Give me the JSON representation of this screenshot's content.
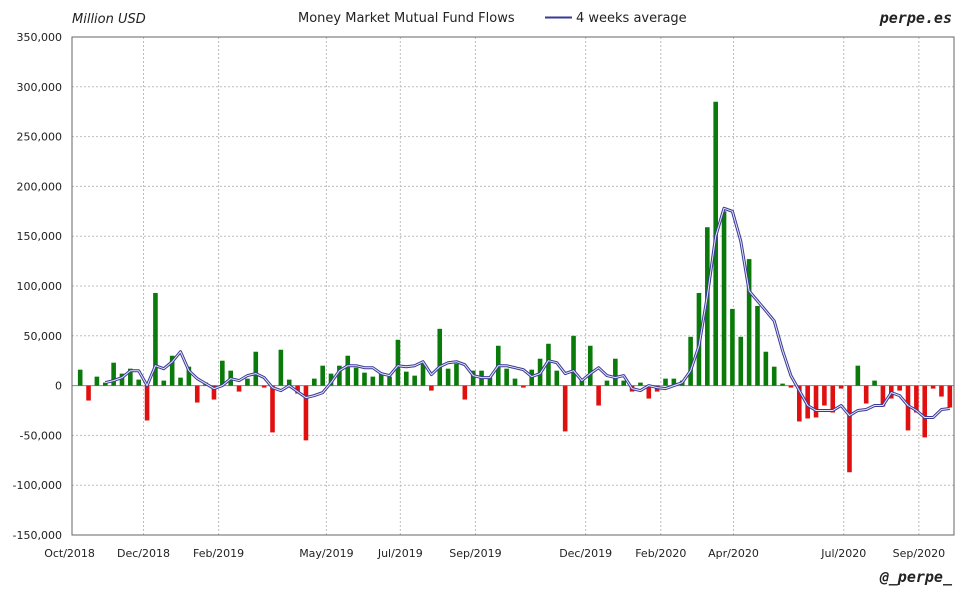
{
  "chart_data": {
    "type": "bar",
    "title": "Money Market Mutual Fund Flows",
    "ylabel": "Million USD",
    "brand_top": "perpe.es",
    "brand_bottom": "@_perpe_",
    "ylim": [
      -150000,
      350000
    ],
    "yticks": [
      350000,
      300000,
      250000,
      200000,
      150000,
      100000,
      50000,
      0,
      -50000,
      -100000,
      -150000
    ],
    "ytick_labels": [
      "350,000",
      "300,000",
      "250,000",
      "200,000",
      "150,000",
      "100,000",
      "50,000",
      "0",
      "-50,000",
      "-100,000",
      "-150,000"
    ],
    "x_start": "2018-10-03",
    "x_end": "2020-09-30",
    "xtick_labels": [
      {
        "label": "Oct/2018",
        "date": "2018-10-01"
      },
      {
        "label": "Dec/2018",
        "date": "2018-12-01"
      },
      {
        "label": "Feb/2019",
        "date": "2019-02-01"
      },
      {
        "label": "May/2019",
        "date": "2019-05-01"
      },
      {
        "label": "Jul/2019",
        "date": "2019-07-01"
      },
      {
        "label": "Sep/2019",
        "date": "2019-09-01"
      },
      {
        "label": "Dec/2019",
        "date": "2019-12-01"
      },
      {
        "label": "Feb/2020",
        "date": "2020-02-01"
      },
      {
        "label": "Apr/2020",
        "date": "2020-04-01"
      },
      {
        "label": "Jul/2020",
        "date": "2020-07-01"
      },
      {
        "label": "Sep/2020",
        "date": "2020-09-01"
      }
    ],
    "colors": {
      "positive": "#0a7a0a",
      "negative": "#e01010",
      "average": "#3a3a9a"
    },
    "grid": true,
    "legend": {
      "position": "top-center"
    },
    "series": [
      {
        "kind": "bar",
        "values": [
          16000,
          -15000,
          9000,
          3000,
          23000,
          12000,
          17000,
          6000,
          -35000,
          93000,
          5000,
          30000,
          8000,
          19000,
          -17000,
          3000,
          -14000,
          25000,
          15000,
          -6000,
          7000,
          34000,
          -2000,
          -47000,
          36000,
          6000,
          -8000,
          -55000,
          7000,
          20000,
          12000,
          20000,
          30000,
          18000,
          13000,
          9000,
          12000,
          9000,
          46000,
          14000,
          10000,
          22000,
          -5000,
          57000,
          17000,
          22000,
          -14000,
          15000,
          15000,
          8000,
          40000,
          17000,
          7000,
          -2000,
          16000,
          27000,
          42000,
          15000,
          -46000,
          50000,
          5000,
          40000,
          -20000,
          5000,
          27000,
          5000,
          -6000,
          3000,
          -13000,
          -6000,
          7000,
          7000,
          5000,
          49000,
          93000,
          159000,
          285000,
          175000,
          77000,
          49000,
          127000,
          80000,
          34000,
          19000,
          2000,
          -2000,
          -36000,
          -33000,
          -32000,
          -20000,
          -27000,
          -3000,
          -87000,
          20000,
          -18000,
          5000,
          -21000,
          -13000,
          -5000,
          -45000,
          -27000,
          -52000,
          -3000,
          -11000,
          -22000
        ]
      },
      {
        "kind": "line",
        "name": "4 weeks average",
        "values": [
          null,
          null,
          null,
          3000,
          5000,
          8000,
          15000,
          15000,
          0,
          20000,
          17000,
          24000,
          34000,
          15000,
          7000,
          2000,
          -3000,
          0,
          7000,
          5000,
          10000,
          12000,
          8000,
          -2000,
          -5000,
          0,
          -6000,
          -12000,
          -10000,
          -7000,
          3000,
          15000,
          20000,
          20000,
          18000,
          18000,
          12000,
          10000,
          20000,
          19000,
          20000,
          24000,
          11000,
          19000,
          23000,
          24000,
          21000,
          10000,
          8000,
          8000,
          20000,
          20000,
          18000,
          16000,
          9000,
          12000,
          25000,
          23000,
          12000,
          15000,
          5000,
          12000,
          18000,
          10000,
          8000,
          10000,
          -3000,
          -5000,
          0,
          -2000,
          -3000,
          0,
          3000,
          15000,
          40000,
          90000,
          150000,
          178000,
          175000,
          145000,
          95000,
          85000,
          75000,
          65000,
          35000,
          10000,
          -5000,
          -20000,
          -25000,
          -25000,
          -25000,
          -20000,
          -30000,
          -25000,
          -24000,
          -20000,
          -20000,
          -7000,
          -10000,
          -20000,
          -25000,
          -32000,
          -32000,
          -24000,
          -23000
        ]
      }
    ]
  }
}
